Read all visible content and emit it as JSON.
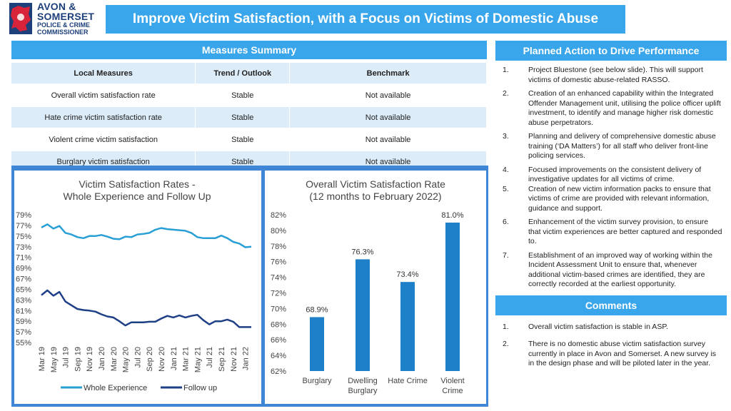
{
  "logo": {
    "line1": "AVON &",
    "line2": "SOMERSET",
    "line3": "POLICE & CRIME",
    "line4": "COMMISSIONER"
  },
  "title": "Improve Victim Satisfaction, with a Focus on Victims of Domestic Abuse",
  "measures": {
    "header": "Measures Summary",
    "columns": [
      "Local Measures",
      "Trend / Outlook",
      "Benchmark"
    ],
    "rows": [
      [
        "Overall victim satisfaction rate",
        "Stable",
        "Not available"
      ],
      [
        "Hate crime victim satisfaction rate",
        "Stable",
        "Not available"
      ],
      [
        "Violent crime victim satisfaction",
        "Stable",
        "Not available"
      ],
      [
        "Burglary victim satisfaction",
        "Stable",
        "Not available"
      ]
    ]
  },
  "actions": {
    "header": "Planned Action to Drive Performance",
    "items": [
      {
        "num": "1.",
        "text": "Project Bluestone (see below slide). This will support victims of domestic abuse-related RASSO."
      },
      {
        "num": "2.",
        "text": "Creation of an enhanced capability within the Integrated Offender Management unit, utilising the police officer uplift investment, to identify and manage higher risk domestic abuse perpetrators."
      },
      {
        "num": "3.",
        "text": "Planning and delivery of comprehensive domestic abuse training (‘DA Matters’) for all staff who deliver front-line policing services."
      },
      {
        "num": "4.",
        "text": "Focused improvements on the consistent delivery of investigative updates for all victims of crime."
      },
      {
        "num": "5.",
        "text": "Creation of new victim information packs to ensure that victims of crime are provided with relevant information, guidance and support."
      },
      {
        "num": "6.",
        "text": "Enhancement of the victim survey provision, to ensure that victim experiences are better captured and responded to."
      },
      {
        "num": "7.",
        "text": "Establishment of an improved way of working within the Incident Assessment Unit to ensure that, whenever additional victim-based crimes are identified, they are correctly recorded at the earliest opportunity."
      }
    ]
  },
  "comments": {
    "header": "Comments",
    "items": [
      {
        "num": "1.",
        "text": "Overall victim satisfaction is stable in ASP."
      },
      {
        "num": "2.",
        "text": "There is no domestic abuse victim satisfaction survey currently in place in Avon and Somerset. A new survey is in the design phase and will be piloted later in the year."
      }
    ]
  },
  "colors": {
    "accent": "#39a5ea",
    "frame": "#3f86d6",
    "whole": "#2a9fd6",
    "follow": "#1f3f86",
    "bar": "#1e80c8"
  },
  "chart_data": [
    {
      "type": "line",
      "title": "Victim Satisfaction Rates -",
      "subtitle": "Whole Experience and Follow Up",
      "ylim": [
        55,
        79
      ],
      "yticks": [
        "79%",
        "77%",
        "75%",
        "73%",
        "71%",
        "69%",
        "67%",
        "65%",
        "63%",
        "61%",
        "59%",
        "57%",
        "55%"
      ],
      "x": [
        "Mar 19",
        "Apr 19",
        "May 19",
        "Jun 19",
        "Jul 19",
        "Aug 19",
        "Sep 19",
        "Oct 19",
        "Nov 19",
        "Dec 19",
        "Jan 20",
        "Feb 20",
        "Mar 20",
        "Apr 20",
        "May 20",
        "Jun 20",
        "Jul 20",
        "Aug 20",
        "Sep 20",
        "Oct 20",
        "Nov 20",
        "Dec 20",
        "Jan 21",
        "Feb 21",
        "Mar 21",
        "Apr 21",
        "May 21",
        "Jun 21",
        "Jul 21",
        "Aug 21",
        "Sep 21",
        "Oct 21",
        "Nov 21",
        "Dec 21",
        "Jan 22",
        "Feb 22"
      ],
      "xticks": [
        "Mar 19",
        "May 19",
        "Jul 19",
        "Sep 19",
        "Nov 19",
        "Jan 20",
        "Mar 20",
        "May 20",
        "Jul 20",
        "Sep 20",
        "Nov 20",
        "Jan 21",
        "Mar 21",
        "May 21",
        "Jul 21",
        "Sep 21",
        "Nov 21",
        "Jan 22"
      ],
      "legend_position": "bottom",
      "series": [
        {
          "name": "Whole Experience",
          "values": [
            76.6,
            77.2,
            76.4,
            76.9,
            75.6,
            75.3,
            74.8,
            74.6,
            75.0,
            75.0,
            75.2,
            74.9,
            74.5,
            74.4,
            74.9,
            74.8,
            75.3,
            75.4,
            75.6,
            76.2,
            76.5,
            76.3,
            76.2,
            76.1,
            76.0,
            75.6,
            74.8,
            74.6,
            74.6,
            74.6,
            75.1,
            74.6,
            73.9,
            73.6,
            72.9,
            73.0
          ]
        },
        {
          "name": "Follow up",
          "values": [
            63.9,
            64.8,
            63.8,
            64.5,
            62.7,
            62.0,
            61.3,
            61.1,
            61.0,
            60.8,
            60.3,
            59.9,
            59.7,
            59.0,
            58.2,
            58.8,
            58.8,
            58.8,
            58.9,
            58.9,
            59.5,
            60.0,
            59.7,
            60.1,
            59.7,
            60.0,
            60.2,
            59.2,
            58.4,
            59.0,
            59.0,
            59.3,
            58.9,
            57.9,
            57.9,
            57.9
          ]
        }
      ]
    },
    {
      "type": "bar",
      "title": "Overall Victim Satisfaction Rate",
      "subtitle": "(12 months to February 2022)",
      "ylim": [
        62,
        82
      ],
      "yticks": [
        "82%",
        "80%",
        "78%",
        "76%",
        "74%",
        "72%",
        "70%",
        "68%",
        "66%",
        "64%",
        "62%"
      ],
      "categories": [
        "Burglary",
        "Dwelling Burglary",
        "Hate Crime",
        "Violent Crime"
      ],
      "category_lines": [
        [
          "Burglary"
        ],
        [
          "Dwelling",
          "Burglary"
        ],
        [
          "Hate Crime"
        ],
        [
          "Violent",
          "Crime"
        ]
      ],
      "values": [
        68.9,
        76.3,
        73.4,
        81.0
      ],
      "labels": [
        "68.9%",
        "76.3%",
        "73.4%",
        "81.0%"
      ]
    }
  ]
}
